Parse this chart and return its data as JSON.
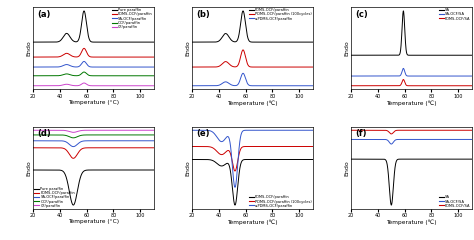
{
  "panels": [
    "(a)",
    "(b)",
    "(c)",
    "(d)",
    "(e)",
    "(f)"
  ],
  "xlabel_heating": "Temperature (°C)",
  "xlabel_cooling": "Temperature (℃)",
  "ylabel": "Endo",
  "xlim": [
    20,
    110
  ],
  "legends": {
    "a": [
      "Pure paraffin",
      "PDMS-OCF/paraffin",
      "SA-OCF/paraffin",
      "OCF/paraffin",
      "CF/paraffin"
    ],
    "b": [
      "PDMS-OCF/paraffin",
      "PDMS-OCF/paraffin (100cycles)",
      "a-PDMS-OCF/paraffin"
    ],
    "c": [
      "SA",
      "SA-OCF/SA",
      "PDMS-OCF/SA"
    ],
    "d": [
      "Pure paraffin",
      "PDMS-OCF/paraffin",
      "SA-OCF/paraffin",
      "OCF/paraffin",
      "CF/paraffin"
    ],
    "e": [
      "PDMS-OCF/paraffin",
      "PDMS-OCF/paraffin (100cycles)",
      "a-PDMS-OCF/paraffin"
    ],
    "f": [
      "SA",
      "SA-OCF/SA",
      "PDMS-OCF/SA"
    ]
  },
  "legend_colors": {
    "a": [
      "#000000",
      "#cc0000",
      "#3355cc",
      "#007700",
      "#cc44cc"
    ],
    "b": [
      "#000000",
      "#cc0000",
      "#3355cc"
    ],
    "c": [
      "#000000",
      "#3355cc",
      "#cc0000"
    ],
    "d": [
      "#000000",
      "#cc0000",
      "#3355cc",
      "#007700",
      "#cc44cc"
    ],
    "e": [
      "#000000",
      "#cc0000",
      "#3355cc"
    ],
    "f": [
      "#000000",
      "#3355cc",
      "#cc0000"
    ]
  },
  "legend_locs": {
    "a": "upper right",
    "b": "upper right",
    "c": "upper right",
    "d": "lower left",
    "e": "lower right",
    "f": "lower right"
  }
}
